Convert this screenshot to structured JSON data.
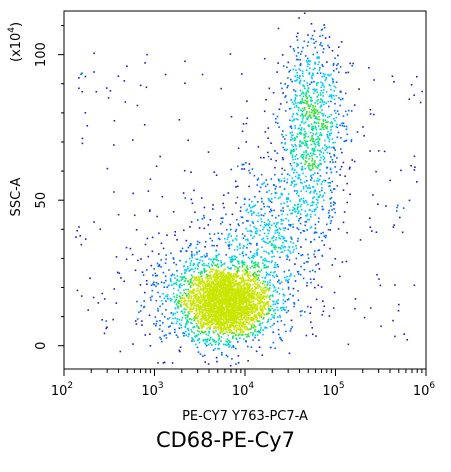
{
  "caption": "CD68-PE-Cy7",
  "chart_data": {
    "type": "scatter",
    "subtype": "flow-cytometry density dot plot",
    "xlabel": "PE-CY7 Y763-PC7-A",
    "ylabel": "SSC-A",
    "y_multiplier_label": "(x10",
    "y_multiplier_exp": "4",
    "y_multiplier_close": ")",
    "x_scale": "log",
    "xlim": [
      100,
      1000000
    ],
    "x_ticks": [
      {
        "base": "10",
        "exp": "2",
        "value": 100
      },
      {
        "base": "10",
        "exp": "3",
        "value": 1000
      },
      {
        "base": "10",
        "exp": "4",
        "value": 10000
      },
      {
        "base": "10",
        "exp": "5",
        "value": 100000
      },
      {
        "base": "10",
        "exp": "6",
        "value": 1000000
      }
    ],
    "y_scale": "linear",
    "ylim": [
      -8,
      115
    ],
    "y_ticks": [
      {
        "label": "0",
        "value": 0
      },
      {
        "label": "50",
        "value": 50
      },
      {
        "label": "100",
        "value": 100
      }
    ],
    "grid": false,
    "populations": [
      {
        "name": "low-CD68 dense cluster",
        "center_x": 6000,
        "center_y": 15,
        "spread_log10_x": 0.22,
        "spread_y": 6,
        "relative_count": 2600
      },
      {
        "name": "diffuse low cluster halo",
        "center_x": 5000,
        "center_y": 18,
        "spread_log10_x": 0.45,
        "spread_y": 10,
        "relative_count": 900
      },
      {
        "name": "high-SSC tail",
        "center_x": 55000,
        "center_y": 75,
        "spread_log10_x": 0.18,
        "spread_y": 16,
        "relative_count": 900
      },
      {
        "name": "bridge",
        "center_x": 20000,
        "center_y": 40,
        "spread_log10_x": 0.3,
        "spread_y": 12,
        "relative_count": 500
      }
    ],
    "density_colors": [
      "#1c1cc8",
      "#0064ff",
      "#00c8ff",
      "#00e0a0",
      "#40e040",
      "#c8e600"
    ]
  }
}
